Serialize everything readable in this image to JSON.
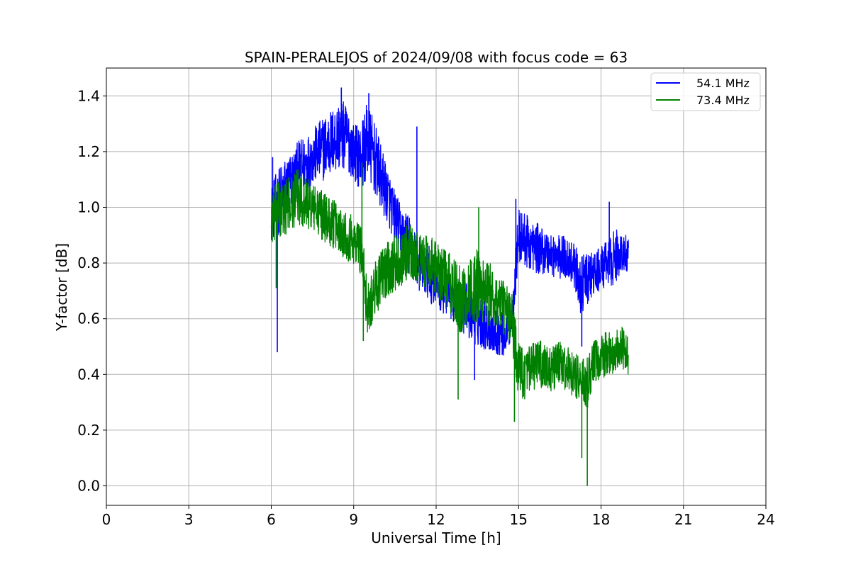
{
  "chart_data": {
    "type": "line",
    "title": "SPAIN-PERALEJOS of 2024/09/08 with focus code = 63",
    "xlabel": "Universal Time [h]",
    "ylabel": "Y-factor [dB]",
    "xlim": [
      0,
      24
    ],
    "ylim": [
      -0.07,
      1.5
    ],
    "xticks": [
      0,
      3,
      6,
      9,
      12,
      15,
      18,
      21,
      24
    ],
    "xtick_labels": [
      "0",
      "3",
      "6",
      "9",
      "12",
      "15",
      "18",
      "21",
      "24"
    ],
    "yticks": [
      0.0,
      0.2,
      0.4,
      0.6,
      0.8,
      1.0,
      1.2,
      1.4
    ],
    "ytick_labels": [
      "0.0",
      "0.2",
      "0.4",
      "0.6",
      "0.8",
      "1.0",
      "1.2",
      "1.4"
    ],
    "grid": true,
    "legend_position": "top-right",
    "series": [
      {
        "name": "54.1 MHz",
        "color": "#0000ff",
        "x": [
          6.0,
          6.25,
          6.5,
          6.75,
          7.0,
          7.25,
          7.5,
          7.75,
          8.0,
          8.25,
          8.5,
          8.75,
          9.0,
          9.25,
          9.5,
          9.75,
          10.0,
          10.25,
          10.5,
          10.75,
          11.0,
          11.25,
          11.5,
          11.75,
          12.0,
          12.25,
          12.5,
          12.75,
          13.0,
          13.25,
          13.5,
          13.75,
          14.0,
          14.25,
          14.5,
          14.75,
          15.0,
          15.25,
          15.5,
          15.75,
          16.0,
          16.25,
          16.5,
          16.75,
          17.0,
          17.25,
          17.5,
          17.75,
          18.0,
          18.25,
          18.5,
          18.75,
          19.0
        ],
        "y": [
          0.98,
          1.02,
          1.06,
          1.1,
          1.14,
          1.16,
          1.18,
          1.2,
          1.22,
          1.24,
          1.26,
          1.25,
          1.2,
          1.18,
          1.24,
          1.18,
          1.1,
          1.04,
          0.96,
          0.9,
          0.86,
          0.82,
          0.78,
          0.76,
          0.74,
          0.7,
          0.68,
          0.66,
          0.64,
          0.62,
          0.6,
          0.58,
          0.56,
          0.55,
          0.54,
          0.6,
          0.9,
          0.88,
          0.86,
          0.85,
          0.84,
          0.83,
          0.82,
          0.82,
          0.8,
          0.72,
          0.74,
          0.76,
          0.78,
          0.8,
          0.82,
          0.84,
          0.82
        ],
        "amplitude": [
          0.1,
          0.12,
          0.12,
          0.1,
          0.1,
          0.1,
          0.1,
          0.11,
          0.12,
          0.12,
          0.13,
          0.12,
          0.1,
          0.12,
          0.14,
          0.13,
          0.12,
          0.1,
          0.1,
          0.1,
          0.12,
          0.1,
          0.1,
          0.1,
          0.1,
          0.08,
          0.08,
          0.08,
          0.1,
          0.1,
          0.1,
          0.09,
          0.08,
          0.08,
          0.08,
          0.08,
          0.1,
          0.1,
          0.09,
          0.09,
          0.08,
          0.08,
          0.08,
          0.08,
          0.08,
          0.1,
          0.1,
          0.08,
          0.08,
          0.08,
          0.1,
          0.08,
          0.07
        ],
        "spikes": [
          [
            6.22,
            0.48
          ],
          [
            6.05,
            1.18
          ],
          [
            8.55,
            1.43
          ],
          [
            9.55,
            1.41
          ],
          [
            11.3,
            1.29
          ],
          [
            13.4,
            0.38
          ],
          [
            14.9,
            1.03
          ],
          [
            17.3,
            0.5
          ],
          [
            18.3,
            1.02
          ]
        ]
      },
      {
        "name": "73.4 MHz",
        "color": "#008000",
        "x": [
          6.0,
          6.25,
          6.5,
          6.75,
          7.0,
          7.25,
          7.5,
          7.75,
          8.0,
          8.25,
          8.5,
          8.75,
          9.0,
          9.25,
          9.5,
          9.75,
          10.0,
          10.25,
          10.5,
          10.75,
          11.0,
          11.25,
          11.5,
          11.75,
          12.0,
          12.25,
          12.5,
          12.75,
          13.0,
          13.25,
          13.5,
          13.75,
          14.0,
          14.25,
          14.5,
          14.75,
          15.0,
          15.25,
          15.5,
          15.75,
          16.0,
          16.25,
          16.5,
          16.75,
          17.0,
          17.25,
          17.5,
          17.75,
          18.0,
          18.25,
          18.5,
          18.75,
          19.0
        ],
        "y": [
          0.96,
          0.98,
          1.0,
          1.02,
          1.04,
          1.02,
          1.0,
          0.98,
          0.96,
          0.94,
          0.92,
          0.9,
          0.88,
          0.86,
          0.64,
          0.7,
          0.75,
          0.78,
          0.8,
          0.82,
          0.84,
          0.82,
          0.8,
          0.8,
          0.78,
          0.76,
          0.72,
          0.68,
          0.66,
          0.7,
          0.72,
          0.7,
          0.68,
          0.66,
          0.64,
          0.6,
          0.42,
          0.4,
          0.42,
          0.44,
          0.42,
          0.42,
          0.44,
          0.42,
          0.4,
          0.38,
          0.36,
          0.44,
          0.46,
          0.48,
          0.48,
          0.5,
          0.46
        ],
        "amplitude": [
          0.1,
          0.12,
          0.1,
          0.1,
          0.1,
          0.1,
          0.09,
          0.09,
          0.09,
          0.09,
          0.09,
          0.09,
          0.09,
          0.1,
          0.1,
          0.1,
          0.1,
          0.1,
          0.1,
          0.1,
          0.1,
          0.1,
          0.1,
          0.1,
          0.1,
          0.1,
          0.12,
          0.12,
          0.12,
          0.12,
          0.14,
          0.12,
          0.12,
          0.1,
          0.1,
          0.1,
          0.1,
          0.09,
          0.09,
          0.09,
          0.08,
          0.08,
          0.08,
          0.08,
          0.08,
          0.08,
          0.1,
          0.08,
          0.08,
          0.08,
          0.08,
          0.08,
          0.07
        ],
        "spikes": [
          [
            6.18,
            0.71
          ],
          [
            7.1,
            1.18
          ],
          [
            9.3,
            1.16
          ],
          [
            9.35,
            0.52
          ],
          [
            12.8,
            0.31
          ],
          [
            13.55,
            1.0
          ],
          [
            14.85,
            0.23
          ],
          [
            17.3,
            0.1
          ],
          [
            17.5,
            0.0
          ]
        ]
      }
    ]
  }
}
